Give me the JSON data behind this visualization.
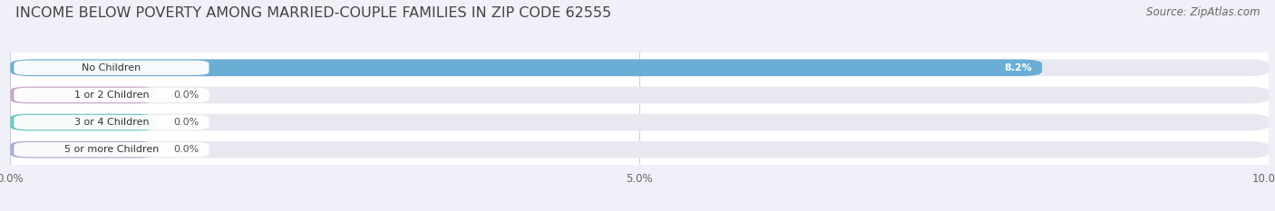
{
  "title": "INCOME BELOW POVERTY AMONG MARRIED-COUPLE FAMILIES IN ZIP CODE 62555",
  "source": "Source: ZipAtlas.com",
  "categories": [
    "No Children",
    "1 or 2 Children",
    "3 or 4 Children",
    "5 or more Children"
  ],
  "values": [
    8.2,
    0.0,
    0.0,
    0.0
  ],
  "bar_colors": [
    "#6aaed6",
    "#c8a8c8",
    "#6ec9c4",
    "#a8aed6"
  ],
  "bar_bg_color": "#e8e8f0",
  "label_bg_color": "#ffffff",
  "xlim": [
    0,
    10.0
  ],
  "xticks": [
    0.0,
    5.0,
    10.0
  ],
  "xticklabels": [
    "0.0%",
    "5.0%",
    "10.0%"
  ],
  "value_label_color": "#555555",
  "title_color": "#444444",
  "title_fontsize": 11.5,
  "source_fontsize": 8.5,
  "tick_fontsize": 8.5,
  "bar_label_fontsize": 8,
  "category_fontsize": 8,
  "background_color": "#ffffff",
  "fig_bg_color": "#f0f0f8"
}
